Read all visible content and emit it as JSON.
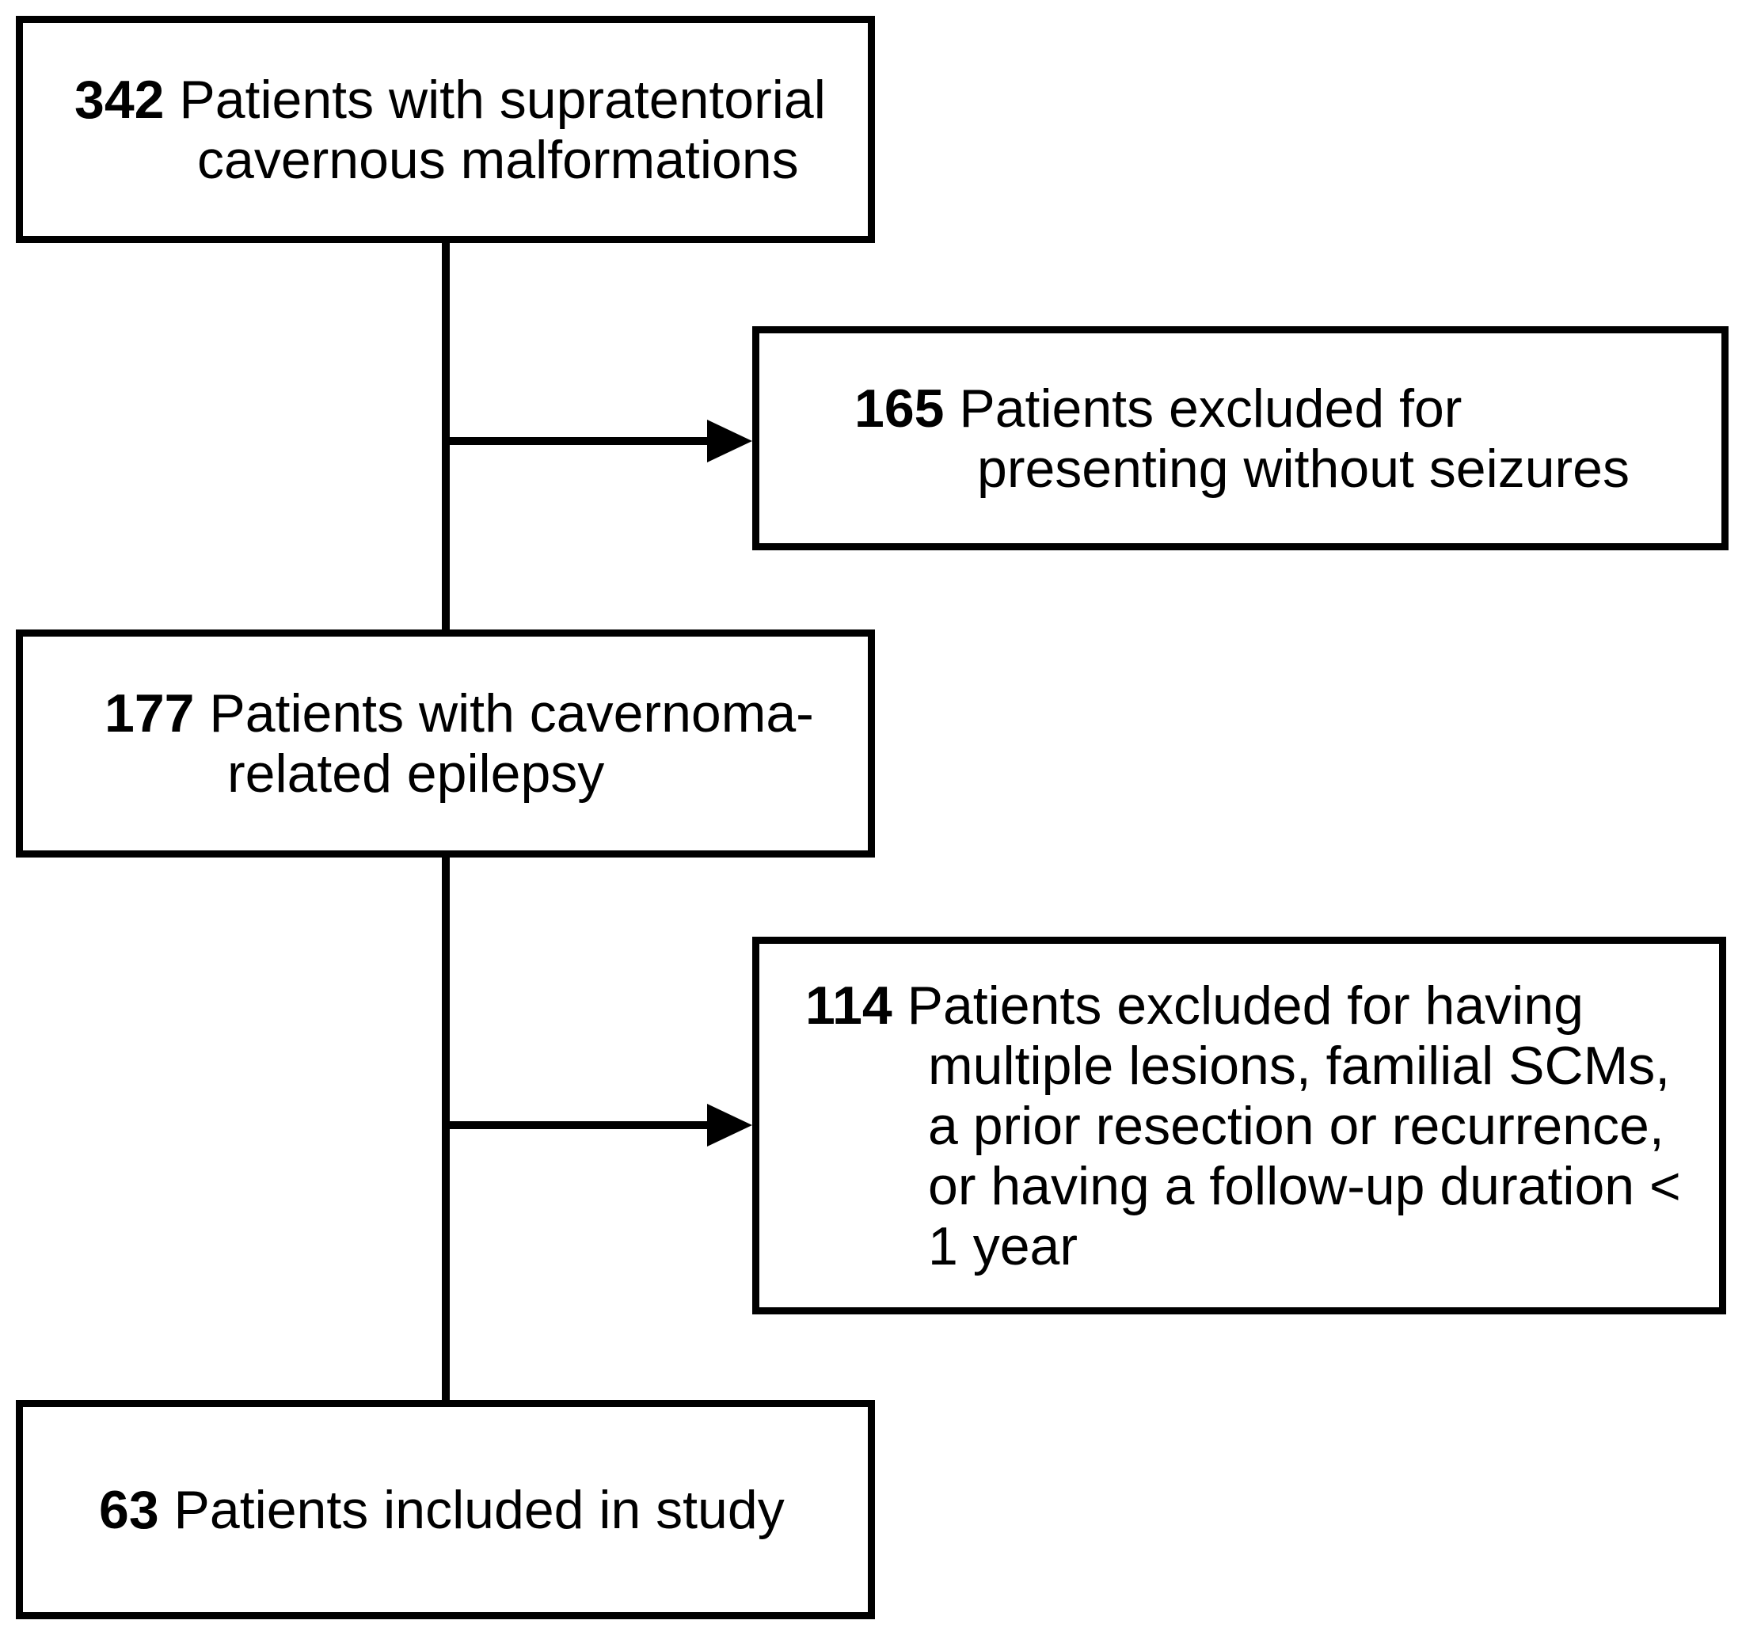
{
  "diagram_type": "patient-selection-flowchart",
  "colors": {
    "line": "#000000",
    "text": "#000000",
    "background": "#ffffff"
  },
  "nodes": [
    {
      "id": "total-patients",
      "number": "342",
      "text": "Patients with supratentorial cavernous malformations"
    },
    {
      "id": "excluded-without-seizures",
      "number": "165",
      "text": "Patients excluded for presenting without seizures"
    },
    {
      "id": "cavernoma-related-epilepsy",
      "number": "177",
      "text": "Patients with cavernoma-related epilepsy"
    },
    {
      "id": "excluded-other-criteria",
      "number": "114",
      "text": "Patients excluded for having multiple lesions, familial SCMs, a prior resection or recurrence, or having a follow-up duration < 1 year"
    },
    {
      "id": "included-in-study",
      "number": "63",
      "text": "Patients included in study"
    }
  ]
}
